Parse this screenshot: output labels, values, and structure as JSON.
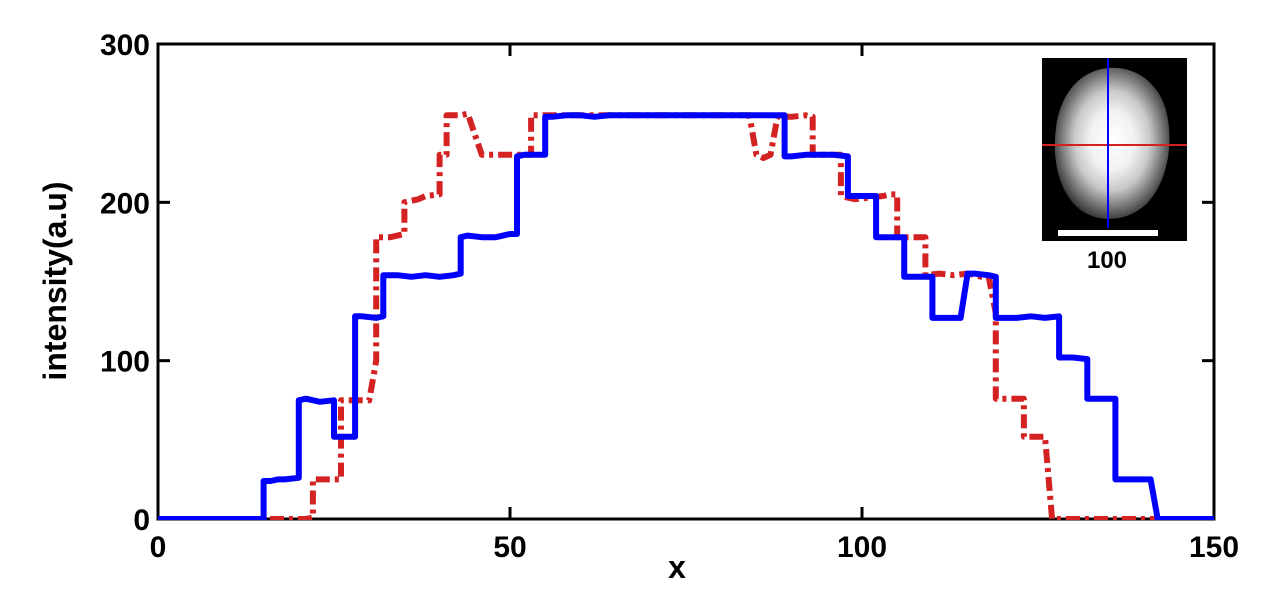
{
  "chart_data": {
    "type": "line",
    "title": "",
    "xlabel": "x",
    "ylabel": "intensity(a.u)",
    "xlim": [
      0,
      150
    ],
    "ylim": [
      0,
      300
    ],
    "xticks": [
      0,
      50,
      100,
      150
    ],
    "yticks": [
      0,
      100,
      200,
      300
    ],
    "xtick_labels": [
      "0",
      "50",
      "100",
      "150"
    ],
    "ytick_labels": [
      "0",
      "100",
      "200",
      "300"
    ],
    "grid": false,
    "series": [
      {
        "color": "#0000ff",
        "style": "solid",
        "points": [
          [
            0,
            0
          ],
          [
            15,
            0
          ],
          [
            15,
            24
          ],
          [
            16,
            24
          ],
          [
            17,
            25
          ],
          [
            18,
            25
          ],
          [
            20,
            26
          ],
          [
            20,
            75
          ],
          [
            21,
            76
          ],
          [
            23,
            74
          ],
          [
            25,
            75
          ],
          [
            25,
            52
          ],
          [
            26,
            52
          ],
          [
            28,
            52
          ],
          [
            28,
            128
          ],
          [
            29,
            128
          ],
          [
            31,
            127
          ],
          [
            32,
            128
          ],
          [
            32,
            154
          ],
          [
            34,
            154
          ],
          [
            36,
            153
          ],
          [
            38,
            154
          ],
          [
            40,
            153
          ],
          [
            42,
            154
          ],
          [
            43,
            155
          ],
          [
            43,
            178
          ],
          [
            44,
            179
          ],
          [
            46,
            178
          ],
          [
            48,
            178
          ],
          [
            50,
            180
          ],
          [
            51,
            180
          ],
          [
            51,
            229
          ],
          [
            52,
            230
          ],
          [
            54,
            230
          ],
          [
            55,
            230
          ],
          [
            55,
            254
          ],
          [
            56,
            254
          ],
          [
            58,
            255
          ],
          [
            60,
            255
          ],
          [
            62,
            254
          ],
          [
            64,
            255
          ],
          [
            66,
            255
          ],
          [
            68,
            255
          ],
          [
            70,
            255
          ],
          [
            72,
            255
          ],
          [
            74,
            255
          ],
          [
            76,
            255
          ],
          [
            78,
            255
          ],
          [
            80,
            255
          ],
          [
            82,
            255
          ],
          [
            84,
            255
          ],
          [
            86,
            255
          ],
          [
            88,
            255
          ],
          [
            89,
            255
          ],
          [
            89,
            229
          ],
          [
            90,
            229
          ],
          [
            92,
            230
          ],
          [
            94,
            230
          ],
          [
            96,
            230
          ],
          [
            98,
            229
          ],
          [
            98,
            204
          ],
          [
            100,
            204
          ],
          [
            102,
            204
          ],
          [
            102,
            178
          ],
          [
            104,
            178
          ],
          [
            106,
            178
          ],
          [
            106,
            153
          ],
          [
            108,
            153
          ],
          [
            110,
            153
          ],
          [
            110,
            127
          ],
          [
            112,
            127
          ],
          [
            114,
            127
          ],
          [
            115,
            155
          ],
          [
            116,
            155
          ],
          [
            118,
            154
          ],
          [
            119,
            153
          ],
          [
            119,
            127
          ],
          [
            120,
            127
          ],
          [
            122,
            127
          ],
          [
            124,
            128
          ],
          [
            126,
            127
          ],
          [
            128,
            128
          ],
          [
            128,
            102
          ],
          [
            130,
            102
          ],
          [
            132,
            101
          ],
          [
            132,
            76
          ],
          [
            134,
            76
          ],
          [
            136,
            76
          ],
          [
            136,
            25
          ],
          [
            138,
            25
          ],
          [
            140,
            25
          ],
          [
            141,
            25
          ],
          [
            142,
            0
          ],
          [
            150,
            0
          ]
        ]
      },
      {
        "color": "#d42121",
        "style": "dashdot",
        "points": [
          [
            0,
            0
          ],
          [
            21,
            0
          ],
          [
            22,
            1
          ],
          [
            22,
            25
          ],
          [
            24,
            25
          ],
          [
            26,
            25
          ],
          [
            26,
            75
          ],
          [
            28,
            75
          ],
          [
            30,
            75
          ],
          [
            31,
            100
          ],
          [
            31,
            178
          ],
          [
            33,
            178
          ],
          [
            35,
            180
          ],
          [
            35,
            200
          ],
          [
            37,
            202
          ],
          [
            38,
            204
          ],
          [
            40,
            205
          ],
          [
            40,
            230
          ],
          [
            41,
            230
          ],
          [
            41,
            255
          ],
          [
            43,
            255
          ],
          [
            44,
            256
          ],
          [
            46,
            230
          ],
          [
            48,
            230
          ],
          [
            50,
            230
          ],
          [
            52,
            230
          ],
          [
            53,
            230
          ],
          [
            53,
            255
          ],
          [
            55,
            255
          ],
          [
            58,
            255
          ],
          [
            60,
            255
          ],
          [
            62,
            255
          ],
          [
            64,
            255
          ],
          [
            66,
            255
          ],
          [
            68,
            255
          ],
          [
            70,
            255
          ],
          [
            72,
            255
          ],
          [
            74,
            255
          ],
          [
            76,
            255
          ],
          [
            78,
            255
          ],
          [
            80,
            255
          ],
          [
            82,
            255
          ],
          [
            84,
            255
          ],
          [
            85,
            230
          ],
          [
            86,
            228
          ],
          [
            87,
            230
          ],
          [
            88,
            254
          ],
          [
            90,
            254
          ],
          [
            92,
            255
          ],
          [
            93,
            254
          ],
          [
            93,
            230
          ],
          [
            95,
            230
          ],
          [
            97,
            230
          ],
          [
            97,
            204
          ],
          [
            99,
            202
          ],
          [
            101,
            203
          ],
          [
            103,
            204
          ],
          [
            104,
            205
          ],
          [
            105,
            205
          ],
          [
            105,
            178
          ],
          [
            107,
            178
          ],
          [
            109,
            178
          ],
          [
            109,
            154
          ],
          [
            111,
            155
          ],
          [
            113,
            154
          ],
          [
            115,
            155
          ],
          [
            117,
            153
          ],
          [
            118,
            153
          ],
          [
            119,
            130
          ],
          [
            119,
            76
          ],
          [
            121,
            76
          ],
          [
            123,
            76
          ],
          [
            123,
            52
          ],
          [
            125,
            52
          ],
          [
            126,
            52
          ],
          [
            127,
            0
          ],
          [
            150,
            0
          ]
        ]
      }
    ]
  },
  "inset": {
    "scale_label": "100"
  }
}
